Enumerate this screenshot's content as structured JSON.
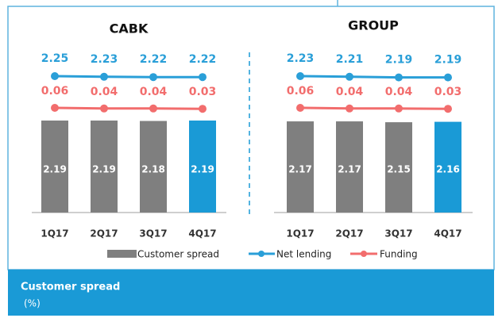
{
  "chart_data": [
    {
      "type": "bar",
      "title": "CABK",
      "categories": [
        "1Q17",
        "2Q17",
        "3Q17",
        "4Q17"
      ],
      "series": [
        {
          "name": "Customer spread",
          "values": [
            2.19,
            2.19,
            2.18,
            2.19
          ],
          "colors": [
            "#7f7f7f",
            "#7f7f7f",
            "#7f7f7f",
            "#1a9ad6"
          ]
        },
        {
          "name": "Net lending",
          "type": "line",
          "color": "#2a9fd8",
          "values": [
            2.25,
            2.23,
            2.22,
            2.22
          ]
        },
        {
          "name": "Funding",
          "type": "line",
          "color": "#f26d6d",
          "values": [
            0.06,
            0.04,
            0.04,
            0.03
          ]
        }
      ]
    },
    {
      "type": "bar",
      "title": "GROUP",
      "categories": [
        "1Q17",
        "2Q17",
        "3Q17",
        "4Q17"
      ],
      "series": [
        {
          "name": "Customer spread",
          "values": [
            2.17,
            2.17,
            2.15,
            2.16
          ],
          "colors": [
            "#7f7f7f",
            "#7f7f7f",
            "#7f7f7f",
            "#1a9ad6"
          ]
        },
        {
          "name": "Net lending",
          "type": "line",
          "color": "#2a9fd8",
          "values": [
            2.23,
            2.21,
            2.19,
            2.19
          ]
        },
        {
          "name": "Funding",
          "type": "line",
          "color": "#f26d6d",
          "values": [
            0.06,
            0.04,
            0.04,
            0.03
          ]
        }
      ]
    }
  ],
  "banner": {
    "title": "Customer spread",
    "subtitle": "(%)"
  }
}
